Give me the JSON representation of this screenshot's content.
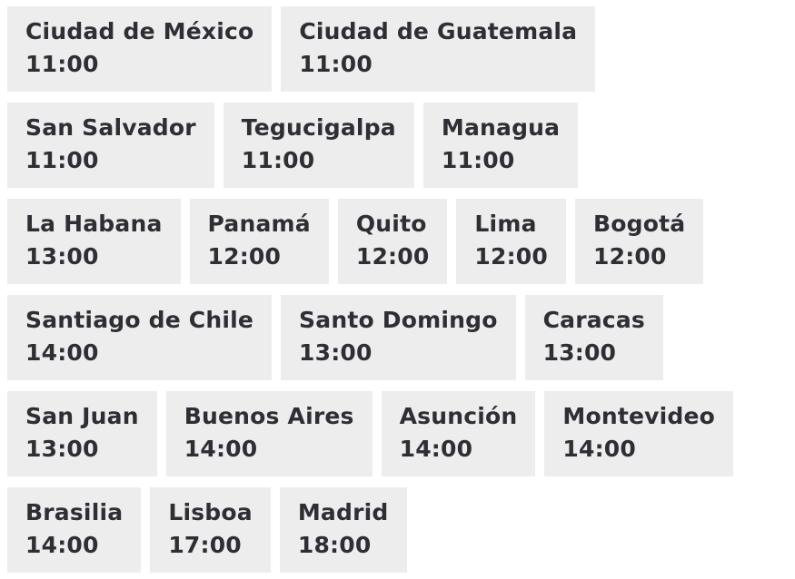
{
  "theme": {
    "page_background": "#ffffff",
    "card_background": "#ededed",
    "text_color": "#2d2f34"
  },
  "world_times": {
    "rows": [
      [
        {
          "city": "Ciudad de México",
          "time": "11:00"
        },
        {
          "city": "Ciudad de Guatemala",
          "time": "11:00"
        }
      ],
      [
        {
          "city": "San Salvador",
          "time": "11:00"
        },
        {
          "city": "Tegucigalpa",
          "time": "11:00"
        },
        {
          "city": "Managua",
          "time": "11:00"
        }
      ],
      [
        {
          "city": "La Habana",
          "time": "13:00"
        },
        {
          "city": "Panamá",
          "time": "12:00"
        },
        {
          "city": "Quito",
          "time": "12:00"
        },
        {
          "city": "Lima",
          "time": "12:00"
        },
        {
          "city": "Bogotá",
          "time": "12:00"
        }
      ],
      [
        {
          "city": "Santiago de Chile",
          "time": "14:00"
        },
        {
          "city": "Santo Domingo",
          "time": "13:00"
        },
        {
          "city": "Caracas",
          "time": "13:00"
        }
      ],
      [
        {
          "city": "San Juan",
          "time": "13:00"
        },
        {
          "city": "Buenos Aires",
          "time": "14:00"
        },
        {
          "city": "Asunción",
          "time": "14:00"
        },
        {
          "city": "Montevideo",
          "time": "14:00"
        }
      ],
      [
        {
          "city": "Brasilia",
          "time": "14:00"
        },
        {
          "city": "Lisboa",
          "time": "17:00"
        },
        {
          "city": "Madrid",
          "time": "18:00"
        }
      ]
    ]
  }
}
